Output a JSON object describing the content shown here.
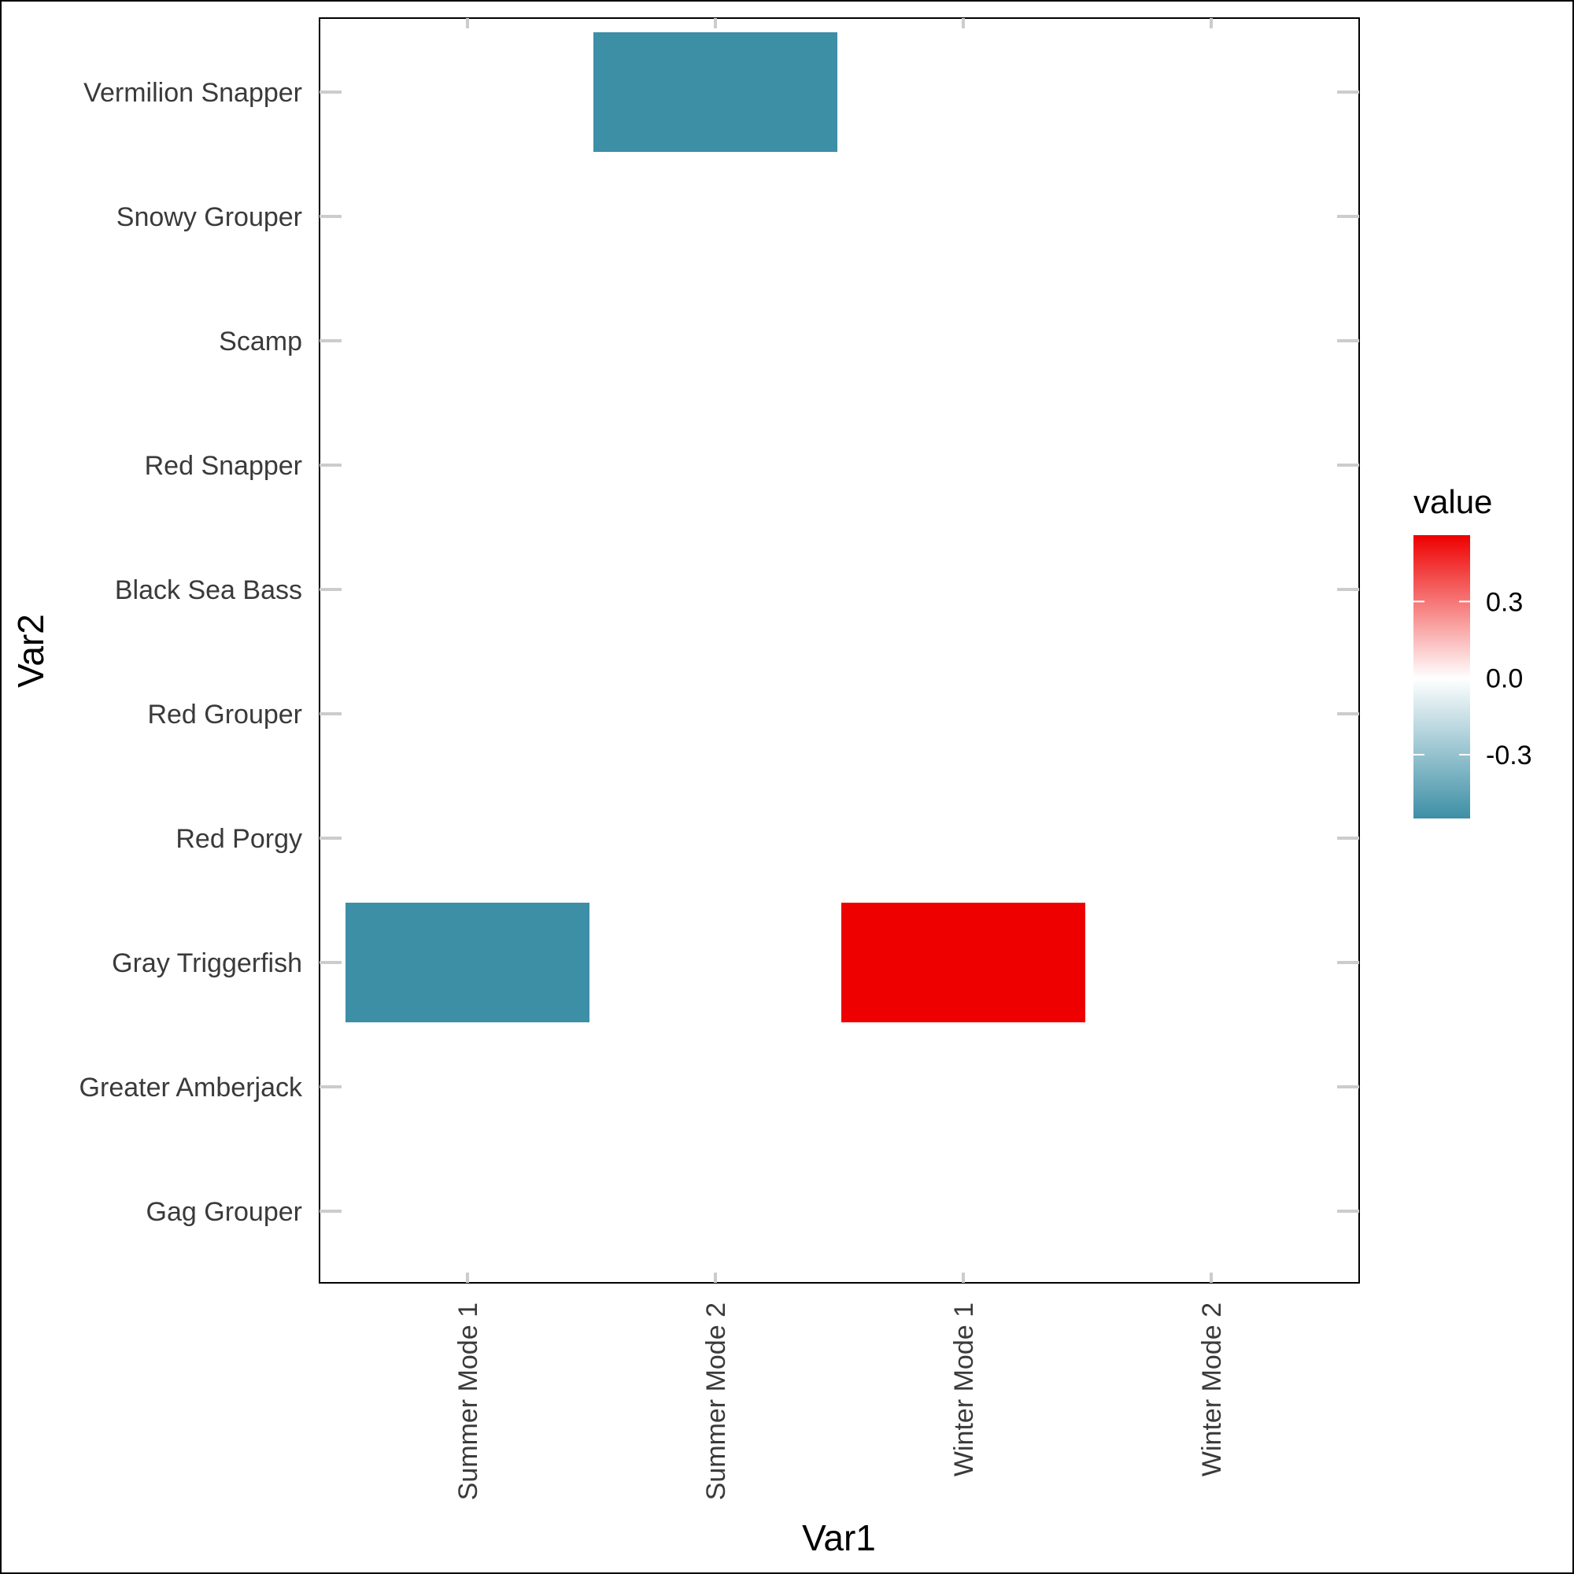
{
  "chart_data": {
    "type": "heatmap",
    "title": "",
    "xlabel": "Var1",
    "ylabel": "Var2",
    "x_categories": [
      "Summer Mode 1",
      "Summer Mode 2",
      "Winter Mode 1",
      "Winter Mode 2"
    ],
    "y_categories": [
      "Gag Grouper",
      "Greater Amberjack",
      "Gray Triggerfish",
      "Red Porgy",
      "Red Grouper",
      "Black Sea Bass",
      "Red Snapper",
      "Scamp",
      "Snowy Grouper ",
      "Vermilion Snapper"
    ],
    "cells": [
      {
        "x": "Summer Mode 2",
        "y": "Vermilion Snapper",
        "value": -0.55
      },
      {
        "x": "Summer Mode 1",
        "y": "Gray Triggerfish",
        "value": -0.55
      },
      {
        "x": "Winter Mode 1",
        "y": "Gray Triggerfish",
        "value": 0.56
      }
    ],
    "grid": false,
    "legend": {
      "title": "value",
      "position": "right",
      "ticks": [
        "0.3",
        "0.0",
        "-0.3"
      ],
      "tick_values": [
        0.3,
        0.0,
        -0.3
      ],
      "range": [
        -0.55,
        0.56
      ]
    },
    "colors": {
      "low": "#3d8fa6",
      "mid": "#ffffff",
      "high": "#ee0000"
    }
  }
}
